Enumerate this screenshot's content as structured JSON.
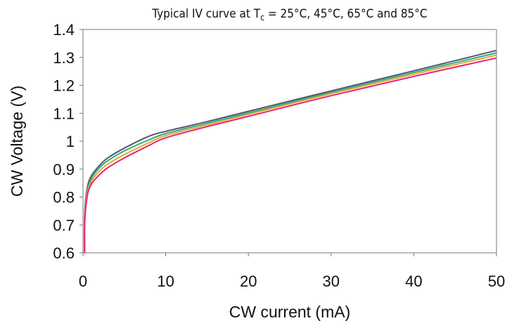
{
  "chart_data": {
    "type": "line",
    "title": "Typical IV curve at T",
    "title_subscript": "c",
    "title_suffix": " = 25°C, 45°C, 65°C and 85°C",
    "xlabel": "CW current (mA)",
    "ylabel": "CW Voltage (V)",
    "xlim": [
      0,
      50
    ],
    "ylim": [
      0.6,
      1.4
    ],
    "x_ticks": [
      "0",
      "10",
      "20",
      "30",
      "40",
      "50"
    ],
    "y_ticks": [
      "0.6",
      "0.7",
      "0.8",
      "0.9",
      "1",
      "1.1",
      "1.2",
      "1.3",
      "1.4"
    ],
    "grid": false,
    "x": [
      0.2,
      0.5,
      1,
      2,
      3,
      5,
      8,
      10,
      15,
      20,
      30,
      40,
      50
    ],
    "series": [
      {
        "color": "#555577",
        "values": [
          0.74,
          0.83,
          0.875,
          0.913,
          0.94,
          0.975,
          1.018,
          1.035,
          1.07,
          1.107,
          1.18,
          1.252,
          1.325
        ]
      },
      {
        "color": "#33aa77",
        "values": [
          0.73,
          0.82,
          0.865,
          0.905,
          0.93,
          0.965,
          1.005,
          1.027,
          1.064,
          1.101,
          1.175,
          1.246,
          1.316
        ]
      },
      {
        "color": "#ddaa33",
        "values": [
          0.72,
          0.81,
          0.855,
          0.893,
          0.918,
          0.952,
          0.995,
          1.02,
          1.058,
          1.096,
          1.17,
          1.24,
          1.308
        ]
      },
      {
        "color": "#ee2277",
        "values": [
          0.7,
          0.8,
          0.845,
          0.88,
          0.905,
          0.94,
          0.985,
          1.012,
          1.052,
          1.089,
          1.163,
          1.232,
          1.298
        ]
      }
    ]
  }
}
